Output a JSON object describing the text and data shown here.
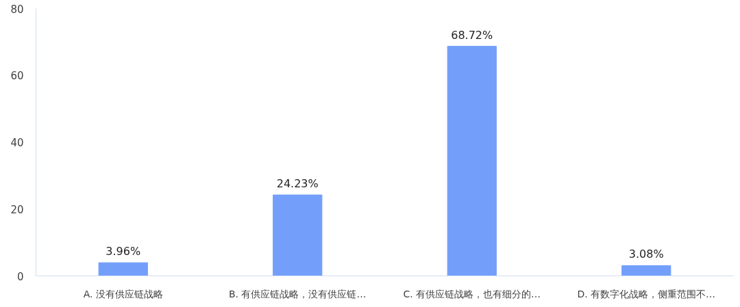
{
  "chart_data": {
    "type": "bar",
    "categories": [
      "A. 没有供应链战略",
      "B. 有供应链战略，没有供应链…",
      "C. 有供应链战略，也有细分的…",
      "D. 有数字化战略，侧重范围不…"
    ],
    "values": [
      3.96,
      24.23,
      68.72,
      3.08
    ],
    "value_labels": [
      "3.96%",
      "24.23%",
      "68.72%",
      "3.08%"
    ],
    "color": "#739ffa",
    "ylim": [
      0,
      80
    ],
    "yticks": [
      0,
      20,
      40,
      60,
      80
    ]
  }
}
